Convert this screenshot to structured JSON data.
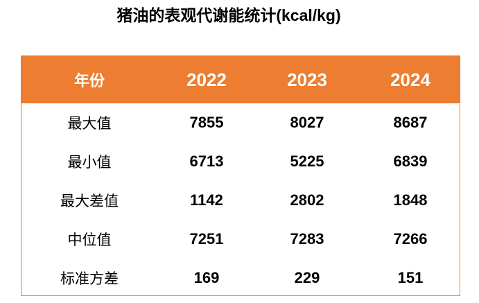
{
  "title": "猪油的表观代谢能统计(kcal/kg)",
  "table": {
    "header": [
      "年份",
      "2022",
      "2023",
      "2024"
    ],
    "rows": [
      [
        "最大值",
        7855,
        8027,
        8687
      ],
      [
        "最小值",
        6713,
        5225,
        6839
      ],
      [
        "最大差值",
        1142,
        2802,
        1848
      ],
      [
        "中位值",
        7251,
        7283,
        7266
      ],
      [
        "标准方差",
        169,
        229,
        151
      ]
    ]
  }
}
